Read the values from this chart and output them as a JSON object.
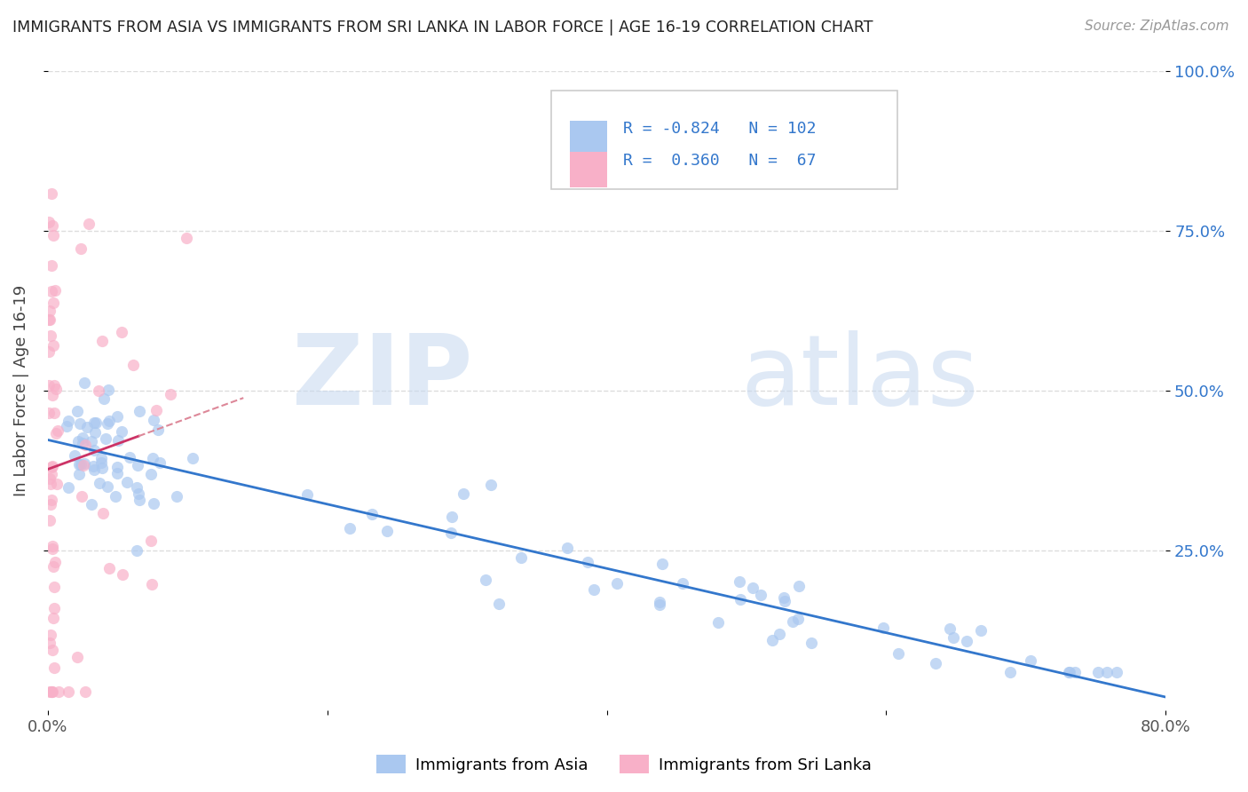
{
  "title": "IMMIGRANTS FROM ASIA VS IMMIGRANTS FROM SRI LANKA IN LABOR FORCE | AGE 16-19 CORRELATION CHART",
  "source": "Source: ZipAtlas.com",
  "ylabel": "In Labor Force | Age 16-19",
  "watermark_zip": "ZIP",
  "watermark_atlas": "atlas",
  "xlim": [
    0.0,
    0.8
  ],
  "ylim": [
    0.0,
    1.0
  ],
  "xticks": [
    0.0,
    0.2,
    0.4,
    0.6,
    0.8
  ],
  "xticklabels": [
    "0.0%",
    "",
    "",
    "",
    "80.0%"
  ],
  "yticks_right": [
    0.25,
    0.5,
    0.75,
    1.0
  ],
  "yticklabels_right": [
    "25.0%",
    "50.0%",
    "75.0%",
    "100.0%"
  ],
  "legend_labels": [
    "Immigrants from Asia",
    "Immigrants from Sri Lanka"
  ],
  "blue_color": "#aac8f0",
  "pink_color": "#f8b0c8",
  "blue_line_color": "#3377cc",
  "pink_line_color": "#cc3366",
  "pink_dash_color": "#dd8899",
  "r_asia": -0.824,
  "n_asia": 102,
  "r_srilanka": 0.36,
  "n_srilanka": 67,
  "grid_color": "#dddddd",
  "title_color": "#222222",
  "source_color": "#999999",
  "axis_color": "#888888"
}
